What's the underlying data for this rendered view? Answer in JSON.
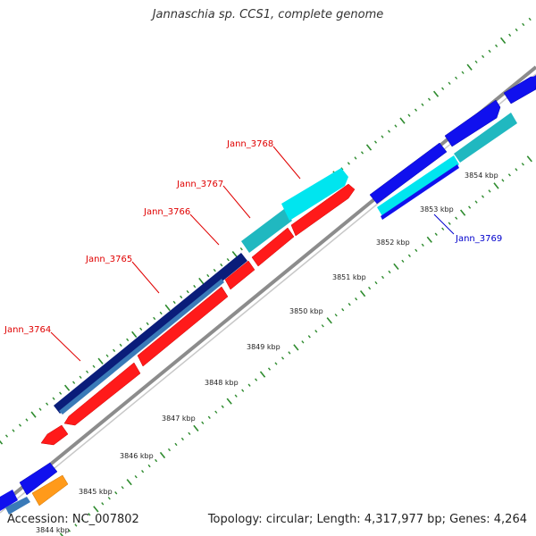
{
  "title": "Jannaschia sp. CCS1, complete genome",
  "footer": {
    "accession_label": "Accession:",
    "accession": "NC_007802",
    "topology_label": "Topology:",
    "topology": "circular;",
    "length_label": "Length:",
    "length": "4,317,977 bp;",
    "genes_label": "Genes:",
    "genes": "4,264"
  },
  "colors": {
    "backbone": "#8c8c8c",
    "forward_ruler_ticks": "#2e8b2e",
    "gene_red": "#ff1a1a",
    "gene_blue": "#1010ee",
    "gene_navy": "#0a1d7a",
    "gene_steel": "#3a7ab8",
    "gene_cyan": "#00e5ef",
    "gene_teal": "#20b8c0",
    "gene_orange": "#ff9a1a",
    "label_red": "#e00000",
    "label_blue": "#0000cc"
  },
  "scale_labels": [
    "3844 kbp",
    "3845 kbp",
    "3846 kbp",
    "3847 kbp",
    "3848 kbp",
    "3849 kbp",
    "3850 kbp",
    "3851 kbp",
    "3852 kbp",
    "3853 kbp",
    "3854 kbp"
  ],
  "gene_labels": [
    {
      "name": "Jann_3764",
      "color": "red"
    },
    {
      "name": "Jann_3765",
      "color": "red"
    },
    {
      "name": "Jann_3766",
      "color": "red"
    },
    {
      "name": "Jann_3767",
      "color": "red"
    },
    {
      "name": "Jann_3768",
      "color": "red"
    },
    {
      "name": "Jann_3769",
      "color": "blue"
    }
  ]
}
